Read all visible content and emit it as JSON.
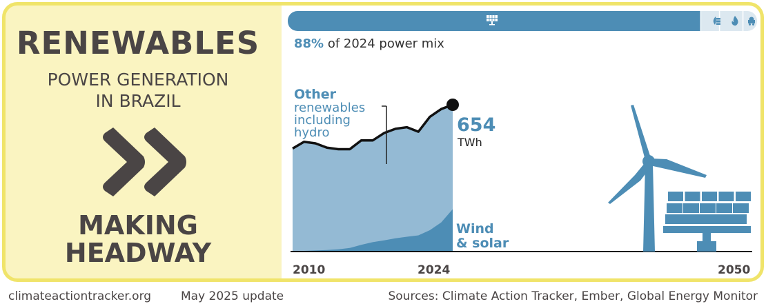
{
  "left": {
    "title": "RENEWABLES",
    "subtitle_line1": "POWER GENERATION",
    "subtitle_line2": "IN BRAZIL",
    "status_icon": "double-chevron-right-icon",
    "status_line1": "MAKING",
    "status_line2": "HEADWAY"
  },
  "mix_bar": {
    "share_pct": 88,
    "percent_label": "88%",
    "label_rest": " of 2024 power mix",
    "segments": [
      {
        "name": "renewables",
        "icon": "solar-panel-icon",
        "share": 0.88,
        "color": "#4d8db5"
      },
      {
        "name": "bioenergy-other",
        "icon": "leaf-barrel-icon",
        "share": 0.04,
        "color": "#dce8f0"
      },
      {
        "name": "gas",
        "icon": "flame-icon",
        "share": 0.05,
        "color": "#dce8f0"
      },
      {
        "name": "coal",
        "icon": "coal-cart-icon",
        "share": 0.03,
        "color": "#dce8f0"
      }
    ]
  },
  "colors": {
    "accent_blue": "#4d8db5",
    "light_blue": "#94bad4",
    "yellow_border": "#f0e46a",
    "panel_yellow": "#faf4c1",
    "dark_text": "#4a4545"
  },
  "chart_data": {
    "type": "area",
    "title": "Renewable power generation in Brazil",
    "xlabel": "",
    "ylabel": "TWh",
    "x_ticks": [
      "2010",
      "2024",
      "2050"
    ],
    "x": [
      2010,
      2011,
      2012,
      2013,
      2014,
      2015,
      2016,
      2017,
      2018,
      2019,
      2020,
      2021,
      2022,
      2023,
      2024
    ],
    "xlim": [
      2010,
      2050
    ],
    "ylim": [
      0,
      700
    ],
    "grid": false,
    "series": [
      {
        "name": "Other renewables including hydro (total renewables line)",
        "values": [
          459,
          489,
          482,
          463,
          456,
          456,
          495,
          495,
          528,
          547,
          554,
          534,
          600,
          635,
          654
        ]
      },
      {
        "name": "Wind & solar",
        "values": [
          2,
          3,
          5,
          7,
          10,
          16,
          30,
          42,
          50,
          59,
          66,
          72,
          95,
          130,
          189
        ]
      }
    ],
    "annotations": {
      "other_label_bold": "Other",
      "other_label_rest_1": "renewables",
      "other_label_rest_2": "including",
      "other_label_rest_3": "hydro",
      "endpoint_value": "654",
      "endpoint_unit": "TWh",
      "wind_label_1": "Wind",
      "wind_label_2": "& solar"
    },
    "illustration": "wind-turbine-and-solar-panel-icon"
  },
  "footer": {
    "site": "climateactiontracker.org",
    "update": "May 2025 update",
    "sources": "Sources: Climate Action Tracker, Ember, Global Energy Monitor"
  }
}
